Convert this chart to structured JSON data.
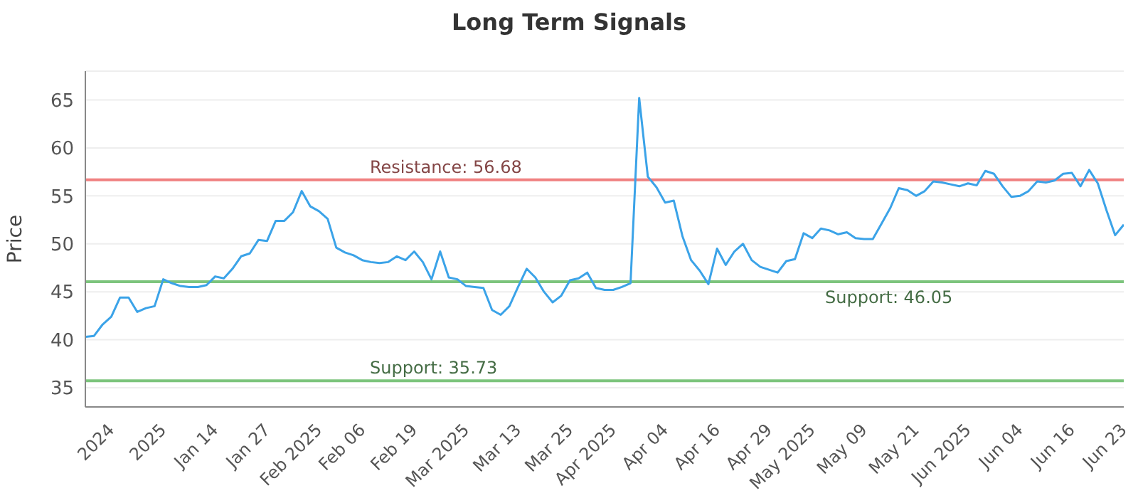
{
  "chart_data": {
    "type": "line",
    "title": "Long Term Signals",
    "ylabel": "Price",
    "categories": [
      null,
      null,
      null,
      "2024",
      null,
      null,
      null,
      null,
      null,
      "2025",
      null,
      null,
      null,
      null,
      null,
      "Jan 14",
      null,
      null,
      null,
      null,
      null,
      "Jan 27",
      null,
      null,
      null,
      null,
      null,
      "Feb 2025",
      null,
      null,
      null,
      null,
      "Feb 06",
      null,
      null,
      null,
      null,
      null,
      "Feb 19",
      null,
      null,
      null,
      null,
      null,
      "Mar 2025",
      null,
      null,
      null,
      null,
      null,
      "Mar 13",
      null,
      null,
      null,
      null,
      null,
      "Mar 25",
      null,
      null,
      null,
      null,
      "Apr 2025",
      null,
      null,
      null,
      null,
      null,
      "Apr 04",
      null,
      null,
      null,
      null,
      null,
      "Apr 16",
      null,
      null,
      null,
      null,
      null,
      "Apr 29",
      null,
      null,
      null,
      null,
      "May 2025",
      null,
      null,
      null,
      null,
      null,
      "May 09",
      null,
      null,
      null,
      null,
      null,
      "May 21",
      null,
      null,
      null,
      null,
      null,
      "Jun 2025",
      null,
      null,
      null,
      null,
      null,
      "Jun 04",
      null,
      null,
      null,
      null,
      null,
      "Jun 16",
      null,
      null,
      null,
      null,
      null,
      "Jun 23"
    ],
    "series": [
      {
        "color": "#3ba3e8",
        "values": [
          40.3,
          40.4,
          41.6,
          42.4,
          44.4,
          44.4,
          42.9,
          43.3,
          43.5,
          46.3,
          45.9,
          45.6,
          45.5,
          45.5,
          45.7,
          46.6,
          46.4,
          47.4,
          48.7,
          49.0,
          50.4,
          50.3,
          52.4,
          52.4,
          53.3,
          55.5,
          53.9,
          53.4,
          52.6,
          49.6,
          49.1,
          48.8,
          48.3,
          48.1,
          48.0,
          48.1,
          48.7,
          48.3,
          49.2,
          48.1,
          46.3,
          49.2,
          46.5,
          46.3,
          45.6,
          45.5,
          45.4,
          43.1,
          42.6,
          43.5,
          45.5,
          47.4,
          46.5,
          45.0,
          43.9,
          44.6,
          46.2,
          46.4,
          47.0,
          45.4,
          45.2,
          45.2,
          45.5,
          45.9,
          65.2,
          57.0,
          55.9,
          54.3,
          54.5,
          50.8,
          48.3,
          47.2,
          45.8,
          49.5,
          47.8,
          49.2,
          50.0,
          48.3,
          47.6,
          47.3,
          47.0,
          48.2,
          48.4,
          51.1,
          50.6,
          51.6,
          51.4,
          51.0,
          51.2,
          50.6,
          50.5,
          50.5,
          52.1,
          53.7,
          55.8,
          55.6,
          55.0,
          55.5,
          56.5,
          56.4,
          56.2,
          56.0,
          56.3,
          56.1,
          57.6,
          57.3,
          56.0,
          54.9,
          55.0,
          55.5,
          56.5,
          56.4,
          56.6,
          57.3,
          57.4,
          56.0,
          57.7,
          56.3,
          53.5,
          50.9,
          52.0
        ]
      }
    ],
    "ylim": [
      33,
      68
    ],
    "yticks": [
      35,
      40,
      45,
      50,
      55,
      60,
      65
    ],
    "grid": "y",
    "legend": false,
    "marker": "none",
    "line_style": "solid",
    "ref_lines": [
      {
        "axis": "y",
        "value": 56.68,
        "label": "Resistance: 56.68",
        "color": "#f08080"
      },
      {
        "axis": "y",
        "value": 46.05,
        "label": "Support: 46.05",
        "color": "#7cc47c"
      },
      {
        "axis": "y",
        "value": 35.73,
        "label": "Support: 35.73",
        "color": "#7cc47c"
      }
    ]
  }
}
